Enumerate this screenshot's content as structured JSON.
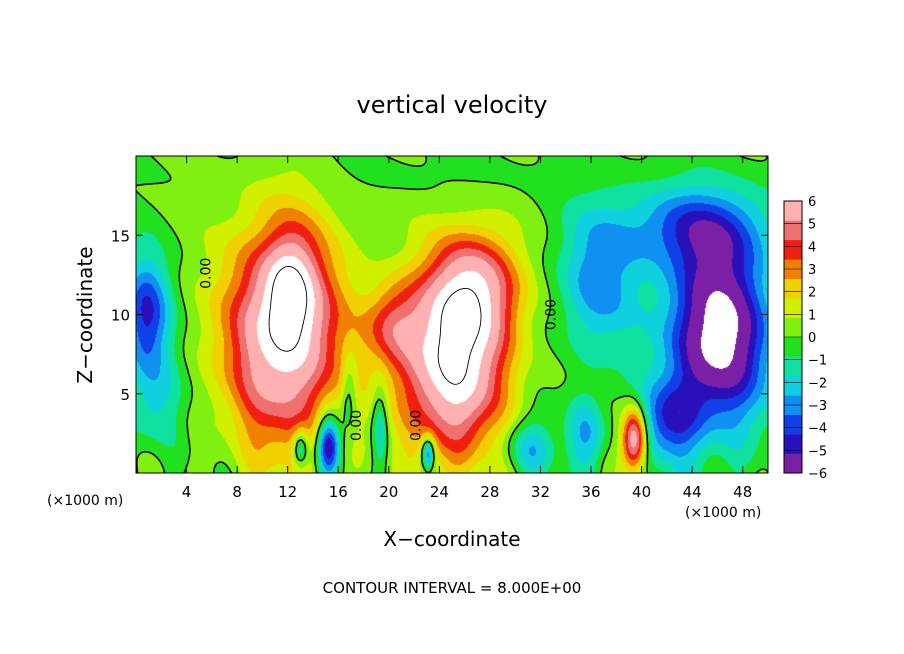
{
  "chart_data": {
    "type": "heatmap",
    "title": "vertical velocity",
    "xlabel": "X−coordinate",
    "ylabel": "Z−coordinate",
    "x_unit_left": "(×1000 m)",
    "x_unit_right": "(×1000 m)",
    "footer": "CONTOUR INTERVAL = 8.000E+00",
    "xlim": [
      0,
      50
    ],
    "ylim": [
      0,
      20
    ],
    "x_ticks": [
      {
        "value": 4,
        "label": "4"
      },
      {
        "value": 8,
        "label": "8"
      },
      {
        "value": 12,
        "label": "12"
      },
      {
        "value": 16,
        "label": "16"
      },
      {
        "value": 20,
        "label": "20"
      },
      {
        "value": 24,
        "label": "24"
      },
      {
        "value": 28,
        "label": "28"
      },
      {
        "value": 32,
        "label": "32"
      },
      {
        "value": 36,
        "label": "36"
      },
      {
        "value": 40,
        "label": "40"
      },
      {
        "value": 44,
        "label": "44"
      },
      {
        "value": 48,
        "label": "48"
      }
    ],
    "y_ticks": [
      {
        "value": 5,
        "label": "5"
      },
      {
        "value": 10,
        "label": "10"
      },
      {
        "value": 15,
        "label": "15"
      }
    ],
    "colorbar": {
      "min": -6,
      "max": 6,
      "ticks": [
        {
          "value": 6,
          "label": "6"
        },
        {
          "value": 5,
          "label": "5"
        },
        {
          "value": 4,
          "label": "4"
        },
        {
          "value": 3,
          "label": "3"
        },
        {
          "value": 2,
          "label": "2"
        },
        {
          "value": 1,
          "label": "1"
        },
        {
          "value": 0,
          "label": "0"
        },
        {
          "value": -1,
          "label": "−1"
        },
        {
          "value": -2,
          "label": "−2"
        },
        {
          "value": -3,
          "label": "−3"
        },
        {
          "value": -4,
          "label": "−4"
        },
        {
          "value": -5,
          "label": "−5"
        },
        {
          "value": -6,
          "label": "−6"
        }
      ],
      "colors": [
        "#7a1fa6",
        "#2a10b8",
        "#1040e8",
        "#1090f0",
        "#10d0e0",
        "#10e0a0",
        "#20e020",
        "#80f010",
        "#d0f000",
        "#f0d000",
        "#f08000",
        "#f02010",
        "#f07070",
        "#ffb0b0"
      ]
    },
    "contour_labels": [
      {
        "x": 5.9,
        "z": 12.6,
        "text": "0.00"
      },
      {
        "x": 33.2,
        "z": 10.0,
        "text": "0.00"
      },
      {
        "x": 17.8,
        "z": 3.0,
        "text": "0.00"
      },
      {
        "x": 22.5,
        "z": 3.0,
        "text": "0.00"
      }
    ],
    "features": [
      {
        "kind": "updraft",
        "x": 11.6,
        "z": 8.8,
        "rx": 4.6,
        "rz": 7.0,
        "peak": 7.5
      },
      {
        "kind": "updraft",
        "x": 12.2,
        "z": 11.6,
        "rx": 1.9,
        "rz": 3.2,
        "peak": 3.5
      },
      {
        "kind": "updraft",
        "x": 25.0,
        "z": 7.0,
        "rx": 4.2,
        "rz": 5.8,
        "peak": 8.0
      },
      {
        "kind": "updraft",
        "x": 27.0,
        "z": 11.8,
        "rx": 3.4,
        "rz": 3.5,
        "peak": 4.5
      },
      {
        "kind": "updraft",
        "x": 20.2,
        "z": 9.4,
        "rx": 2.2,
        "rz": 2.6,
        "peak": 3.0
      },
      {
        "kind": "updraft",
        "x": 39.4,
        "z": 2.2,
        "rx": 1.0,
        "rz": 2.0,
        "peak": 7.0
      },
      {
        "kind": "downdraft",
        "x": 46.0,
        "z": 8.8,
        "rx": 4.0,
        "rz": 5.8,
        "peak": -7.5
      },
      {
        "kind": "downdraft",
        "x": 44.0,
        "z": 15.5,
        "rx": 6.0,
        "rz": 2.6,
        "peak": -3.5
      },
      {
        "kind": "downdraft",
        "x": 36.5,
        "z": 12.0,
        "rx": 3.2,
        "rz": 4.5,
        "peak": -3.0
      },
      {
        "kind": "downdraft",
        "x": 0.8,
        "z": 10.0,
        "rx": 1.8,
        "rz": 3.6,
        "peak": -4.5
      },
      {
        "kind": "downdraft",
        "x": 1.5,
        "z": 4.5,
        "rx": 2.0,
        "rz": 3.0,
        "peak": -2.0
      },
      {
        "kind": "downdraft",
        "x": 15.2,
        "z": 1.8,
        "rx": 0.9,
        "rz": 1.8,
        "peak": -6.0
      },
      {
        "kind": "downdraft",
        "x": 13.0,
        "z": 1.6,
        "rx": 0.6,
        "rz": 1.2,
        "peak": -3.5
      },
      {
        "kind": "downdraft",
        "x": 16.8,
        "z": 5.0,
        "rx": 0.6,
        "rz": 2.6,
        "peak": -2.0
      },
      {
        "kind": "downdraft",
        "x": 19.3,
        "z": 3.0,
        "rx": 0.6,
        "rz": 2.6,
        "peak": -2.5
      },
      {
        "kind": "downdraft",
        "x": 23.1,
        "z": 1.3,
        "rx": 0.5,
        "rz": 1.0,
        "peak": -4.5
      },
      {
        "kind": "downdraft",
        "x": 31.0,
        "z": 1.6,
        "rx": 2.0,
        "rz": 1.8,
        "peak": -2.5
      },
      {
        "kind": "downdraft",
        "x": 35.5,
        "z": 2.5,
        "rx": 1.6,
        "rz": 2.4,
        "peak": -2.5
      },
      {
        "kind": "downdraft",
        "x": 42.0,
        "z": 3.2,
        "rx": 2.4,
        "rz": 2.6,
        "peak": -3.5
      },
      {
        "kind": "downdraft",
        "x": 25.0,
        "z": 19.0,
        "rx": 12.0,
        "rz": 1.5,
        "peak": -0.3
      }
    ],
    "grid": false,
    "legend": "right"
  }
}
